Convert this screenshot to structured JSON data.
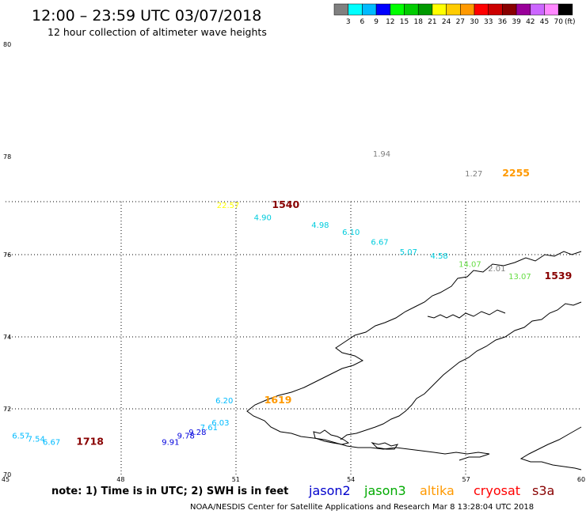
{
  "header": {
    "title": "12:00 – 23:59 UTC 03/07/2018",
    "subtitle": "12 hour collection of altimeter wave heights"
  },
  "legend": {
    "colors": [
      "#808080",
      "#00ffff",
      "#00bbff",
      "#0000ff",
      "#00ff00",
      "#00cc00",
      "#009900",
      "#ffff00",
      "#ffcc00",
      "#ff9900",
      "#ff0000",
      "#cc0000",
      "#880000",
      "#990099",
      "#cc66ff",
      "#ff88ff",
      "#000000"
    ],
    "labels": [
      "3",
      "6",
      "9",
      "12",
      "15",
      "18",
      "21",
      "24",
      "27",
      "30",
      "33",
      "36",
      "39",
      "42",
      "45",
      "70"
    ],
    "unit": "(ft)"
  },
  "map": {
    "lon_min": 45,
    "lon_max": 60,
    "lat_min": 70,
    "lat_max": 80,
    "lat_labels": [
      "80",
      "78",
      "76",
      "74",
      "72",
      "70"
    ],
    "lon_labels": [
      "45",
      "48",
      "51",
      "54",
      "57",
      "60"
    ],
    "observations": [
      {
        "label": "1.94",
        "lon": 54.8,
        "lat": 78.0,
        "color": "#808080"
      },
      {
        "label": "1.27",
        "lon": 57.2,
        "lat": 77.6,
        "color": "#808080"
      },
      {
        "label": "22.57",
        "lon": 50.8,
        "lat": 76.95,
        "color": "#ffff00"
      },
      {
        "label": "4.90",
        "lon": 51.7,
        "lat": 76.7,
        "color": "#00ccdd"
      },
      {
        "label": "4.98",
        "lon": 53.2,
        "lat": 76.55,
        "color": "#00ccdd"
      },
      {
        "label": "6.10",
        "lon": 54.0,
        "lat": 76.4,
        "color": "#00ccdd"
      },
      {
        "label": "6.67",
        "lon": 54.75,
        "lat": 76.2,
        "color": "#00ccdd"
      },
      {
        "label": "5.07",
        "lon": 55.5,
        "lat": 76.0,
        "color": "#00ccdd"
      },
      {
        "label": "4.58",
        "lon": 56.3,
        "lat": 75.9,
        "color": "#00ccdd"
      },
      {
        "label": "14.07",
        "lon": 57.1,
        "lat": 75.7,
        "color": "#66dd44"
      },
      {
        "label": "2.01",
        "lon": 57.8,
        "lat": 75.6,
        "color": "#808080"
      },
      {
        "label": "13.07",
        "lon": 58.4,
        "lat": 75.4,
        "color": "#66dd44"
      },
      {
        "label": "6.20",
        "lon": 50.7,
        "lat": 72.15,
        "color": "#00bbff"
      },
      {
        "label": "6.03",
        "lon": 50.6,
        "lat": 71.5,
        "color": "#00bbff"
      },
      {
        "label": "7.61",
        "lon": 50.3,
        "lat": 71.35,
        "color": "#00bbff"
      },
      {
        "label": "9.28",
        "lon": 50.0,
        "lat": 71.2,
        "color": "#0000dd"
      },
      {
        "label": "9.78",
        "lon": 49.7,
        "lat": 71.1,
        "color": "#0000dd"
      },
      {
        "label": "9.91",
        "lon": 49.3,
        "lat": 70.9,
        "color": "#0000dd"
      },
      {
        "label": "6.57",
        "lon": 45.4,
        "lat": 71.1,
        "color": "#00bbff"
      },
      {
        "label": "7.54",
        "lon": 45.8,
        "lat": 71.0,
        "color": "#00bbff"
      },
      {
        "label": "6.67",
        "lon": 46.2,
        "lat": 70.9,
        "color": "#00bbff"
      }
    ],
    "times": [
      {
        "label": "2255",
        "lon": 58.3,
        "lat": 77.6,
        "color": "#ff9900"
      },
      {
        "label": "1540",
        "lon": 52.3,
        "lat": 76.95,
        "color": "#880000"
      },
      {
        "label": "1539",
        "lon": 59.4,
        "lat": 75.4,
        "color": "#880000"
      },
      {
        "label": "1619",
        "lon": 52.1,
        "lat": 72.15,
        "color": "#ff9900"
      },
      {
        "label": "1718",
        "lon": 47.2,
        "lat": 70.9,
        "color": "#880000"
      }
    ]
  },
  "footer": {
    "note": "note:  1) Time is in UTC;  2) SWH is in feet",
    "satellites": [
      {
        "name": "jason2",
        "color": "#0000cc"
      },
      {
        "name": "jason3",
        "color": "#00aa00"
      },
      {
        "name": "altika",
        "color": "#ff9900"
      },
      {
        "name": "cryosat",
        "color": "#ff0000"
      },
      {
        "name": "s3a",
        "color": "#880000"
      }
    ],
    "credit": "NOAA/NESDIS Center for Satellite Applications and Research     Mar  8 13:28:04 UTC 2018"
  }
}
